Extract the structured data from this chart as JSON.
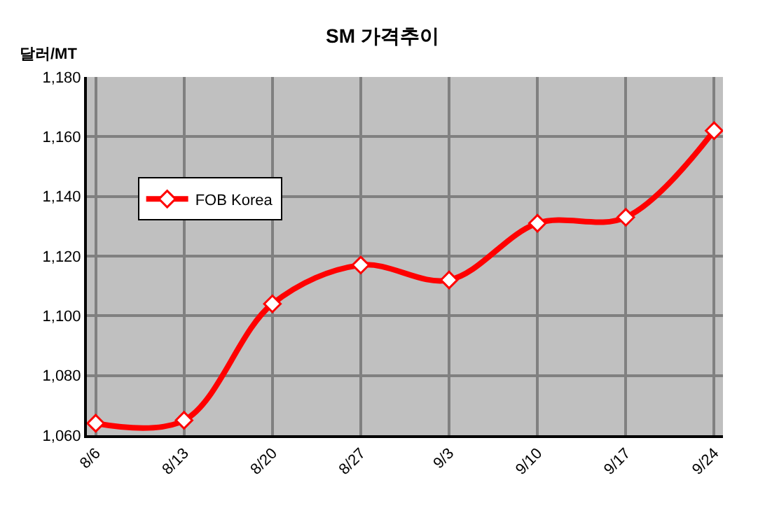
{
  "chart_data": {
    "type": "line",
    "title": "SM 가격추이",
    "ylabel": "달러/MT",
    "categories": [
      "8/6",
      "8/13",
      "8/20",
      "8/27",
      "9/3",
      "9/10",
      "9/17",
      "9/24"
    ],
    "series": [
      {
        "name": "FOB Korea",
        "color": "#ff0000",
        "values": [
          1064,
          1065,
          1104,
          1117,
          1112,
          1131,
          1133,
          1162
        ]
      }
    ],
    "ylim": [
      1060,
      1180
    ],
    "yticks": [
      {
        "value": 1060,
        "label": "1,060"
      },
      {
        "value": 1080,
        "label": "1,080"
      },
      {
        "value": 1100,
        "label": "1,100"
      },
      {
        "value": 1120,
        "label": "1,120"
      },
      {
        "value": 1140,
        "label": "1,140"
      },
      {
        "value": 1160,
        "label": "1,160"
      },
      {
        "value": 1180,
        "label": "1,180"
      }
    ],
    "grid": true,
    "legend": "top left",
    "marker": "diamond",
    "line_style": "solid"
  }
}
